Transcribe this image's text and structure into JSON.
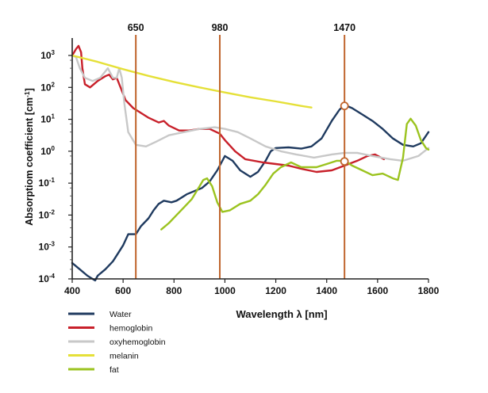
{
  "chart_data": {
    "type": "line",
    "title": "",
    "xlabel": "Wavelength λ [nm]",
    "ylabel_main": "Absorptiom coefficient [cm",
    "ylabel_sup": "-1",
    "ylabel_end": "]",
    "xlim": [
      400,
      1800
    ],
    "ylim_exponent": [
      -4,
      3
    ],
    "yscale": "log",
    "x_ticks": [
      "400",
      "600",
      "800",
      "1000",
      "1200",
      "1400",
      "1600",
      "1800"
    ],
    "y_ticks": [
      {
        "exp": 3,
        "base": "10",
        "sup": "3"
      },
      {
        "exp": 2,
        "base": "10",
        "sup": "2"
      },
      {
        "exp": 1,
        "base": "10",
        "sup": "1"
      },
      {
        "exp": 0,
        "base": "10",
        "sup": "0"
      },
      {
        "exp": -1,
        "base": "10",
        "sup": "-1"
      },
      {
        "exp": -2,
        "base": "10",
        "sup": "-2"
      },
      {
        "exp": -3,
        "base": "10",
        "sup": "-3"
      },
      {
        "exp": -4,
        "base": "10",
        "sup": "-4"
      }
    ],
    "markers": [
      {
        "x": 650,
        "label": "650"
      },
      {
        "x": 980,
        "label": "980"
      },
      {
        "x": 1470,
        "label": "1470",
        "highlights_log": [
          1.42,
          -0.32
        ]
      }
    ],
    "legend_position": "bottom-left",
    "series": [
      {
        "name": "Water",
        "color": "#1f3a5f",
        "points_log": [
          [
            400,
            -3.5
          ],
          [
            430,
            -3.7
          ],
          [
            460,
            -3.9
          ],
          [
            490,
            -4.05
          ],
          [
            500,
            -3.9
          ],
          [
            530,
            -3.7
          ],
          [
            560,
            -3.45
          ],
          [
            580,
            -3.2
          ],
          [
            600,
            -2.95
          ],
          [
            620,
            -2.6
          ],
          [
            650,
            -2.6
          ],
          [
            670,
            -2.35
          ],
          [
            700,
            -2.1
          ],
          [
            720,
            -1.85
          ],
          [
            740,
            -1.65
          ],
          [
            760,
            -1.55
          ],
          [
            790,
            -1.6
          ],
          [
            810,
            -1.55
          ],
          [
            830,
            -1.45
          ],
          [
            850,
            -1.35
          ],
          [
            880,
            -1.25
          ],
          [
            910,
            -1.15
          ],
          [
            940,
            -0.95
          ],
          [
            970,
            -0.6
          ],
          [
            1000,
            -0.15
          ],
          [
            1030,
            -0.3
          ],
          [
            1060,
            -0.6
          ],
          [
            1100,
            -0.8
          ],
          [
            1130,
            -0.65
          ],
          [
            1160,
            -0.3
          ],
          [
            1180,
            0.0
          ],
          [
            1200,
            0.1
          ],
          [
            1250,
            0.12
          ],
          [
            1300,
            0.08
          ],
          [
            1340,
            0.15
          ],
          [
            1380,
            0.4
          ],
          [
            1420,
            0.95
          ],
          [
            1450,
            1.3
          ],
          [
            1470,
            1.45
          ],
          [
            1500,
            1.35
          ],
          [
            1540,
            1.15
          ],
          [
            1580,
            0.95
          ],
          [
            1620,
            0.7
          ],
          [
            1660,
            0.4
          ],
          [
            1700,
            0.2
          ],
          [
            1740,
            0.15
          ],
          [
            1770,
            0.25
          ],
          [
            1800,
            0.6
          ]
        ]
      },
      {
        "name": "hemoglobin",
        "color": "#c8202a",
        "points_log": [
          [
            400,
            3.0
          ],
          [
            415,
            3.2
          ],
          [
            425,
            3.3
          ],
          [
            435,
            3.1
          ],
          [
            440,
            2.6
          ],
          [
            450,
            2.1
          ],
          [
            470,
            2.0
          ],
          [
            500,
            2.2
          ],
          [
            530,
            2.35
          ],
          [
            545,
            2.4
          ],
          [
            560,
            2.25
          ],
          [
            575,
            2.3
          ],
          [
            590,
            2.0
          ],
          [
            610,
            1.6
          ],
          [
            640,
            1.35
          ],
          [
            660,
            1.25
          ],
          [
            700,
            1.05
          ],
          [
            740,
            0.9
          ],
          [
            760,
            0.95
          ],
          [
            780,
            0.8
          ],
          [
            820,
            0.65
          ],
          [
            860,
            0.65
          ],
          [
            900,
            0.7
          ],
          [
            940,
            0.7
          ],
          [
            980,
            0.55
          ],
          [
            1000,
            0.35
          ],
          [
            1040,
            0.0
          ],
          [
            1080,
            -0.25
          ],
          [
            1150,
            -0.35
          ],
          [
            1250,
            -0.45
          ],
          [
            1300,
            -0.55
          ],
          [
            1360,
            -0.65
          ],
          [
            1420,
            -0.6
          ],
          [
            1470,
            -0.45
          ],
          [
            1520,
            -0.3
          ],
          [
            1560,
            -0.15
          ],
          [
            1590,
            -0.1
          ],
          [
            1625,
            -0.25
          ]
        ]
      },
      {
        "name": "oxyhemoglobin",
        "color": "#c8c8c8",
        "points_log": [
          [
            400,
            3.0
          ],
          [
            415,
            2.95
          ],
          [
            430,
            2.6
          ],
          [
            450,
            2.3
          ],
          [
            480,
            2.2
          ],
          [
            510,
            2.3
          ],
          [
            540,
            2.6
          ],
          [
            560,
            2.3
          ],
          [
            575,
            2.3
          ],
          [
            585,
            2.6
          ],
          [
            595,
            2.3
          ],
          [
            605,
            1.5
          ],
          [
            620,
            0.6
          ],
          [
            650,
            0.2
          ],
          [
            690,
            0.15
          ],
          [
            730,
            0.3
          ],
          [
            780,
            0.5
          ],
          [
            840,
            0.6
          ],
          [
            900,
            0.7
          ],
          [
            960,
            0.75
          ],
          [
            1000,
            0.7
          ],
          [
            1050,
            0.6
          ],
          [
            1100,
            0.4
          ],
          [
            1160,
            0.15
          ],
          [
            1220,
            0.0
          ],
          [
            1280,
            -0.1
          ],
          [
            1350,
            -0.2
          ],
          [
            1420,
            -0.1
          ],
          [
            1470,
            -0.05
          ],
          [
            1520,
            -0.05
          ],
          [
            1580,
            -0.15
          ],
          [
            1650,
            -0.25
          ],
          [
            1700,
            -0.3
          ],
          [
            1760,
            -0.15
          ],
          [
            1800,
            0.1
          ]
        ]
      },
      {
        "name": "melanin",
        "color": "#e5e038",
        "points_log": [
          [
            400,
            3.0
          ],
          [
            500,
            2.8
          ],
          [
            600,
            2.57
          ],
          [
            700,
            2.36
          ],
          [
            800,
            2.17
          ],
          [
            900,
            2.0
          ],
          [
            1000,
            1.84
          ],
          [
            1100,
            1.69
          ],
          [
            1200,
            1.56
          ],
          [
            1300,
            1.42
          ],
          [
            1340,
            1.37
          ]
        ]
      },
      {
        "name": "fat",
        "color": "#9bc31f",
        "points_log": [
          [
            750,
            -2.45
          ],
          [
            780,
            -2.25
          ],
          [
            810,
            -2.0
          ],
          [
            840,
            -1.75
          ],
          [
            870,
            -1.5
          ],
          [
            900,
            -1.1
          ],
          [
            915,
            -0.9
          ],
          [
            930,
            -0.85
          ],
          [
            950,
            -1.1
          ],
          [
            970,
            -1.6
          ],
          [
            990,
            -1.9
          ],
          [
            1020,
            -1.85
          ],
          [
            1060,
            -1.65
          ],
          [
            1100,
            -1.55
          ],
          [
            1130,
            -1.35
          ],
          [
            1160,
            -1.05
          ],
          [
            1190,
            -0.7
          ],
          [
            1220,
            -0.5
          ],
          [
            1260,
            -0.35
          ],
          [
            1300,
            -0.5
          ],
          [
            1360,
            -0.5
          ],
          [
            1400,
            -0.4
          ],
          [
            1440,
            -0.3
          ],
          [
            1470,
            -0.3
          ],
          [
            1500,
            -0.45
          ],
          [
            1540,
            -0.6
          ],
          [
            1580,
            -0.75
          ],
          [
            1620,
            -0.7
          ],
          [
            1660,
            -0.85
          ],
          [
            1680,
            -0.9
          ],
          [
            1700,
            -0.2
          ],
          [
            1715,
            0.85
          ],
          [
            1730,
            1.02
          ],
          [
            1750,
            0.8
          ],
          [
            1770,
            0.35
          ],
          [
            1790,
            0.1
          ],
          [
            1800,
            0.05
          ]
        ]
      }
    ]
  }
}
